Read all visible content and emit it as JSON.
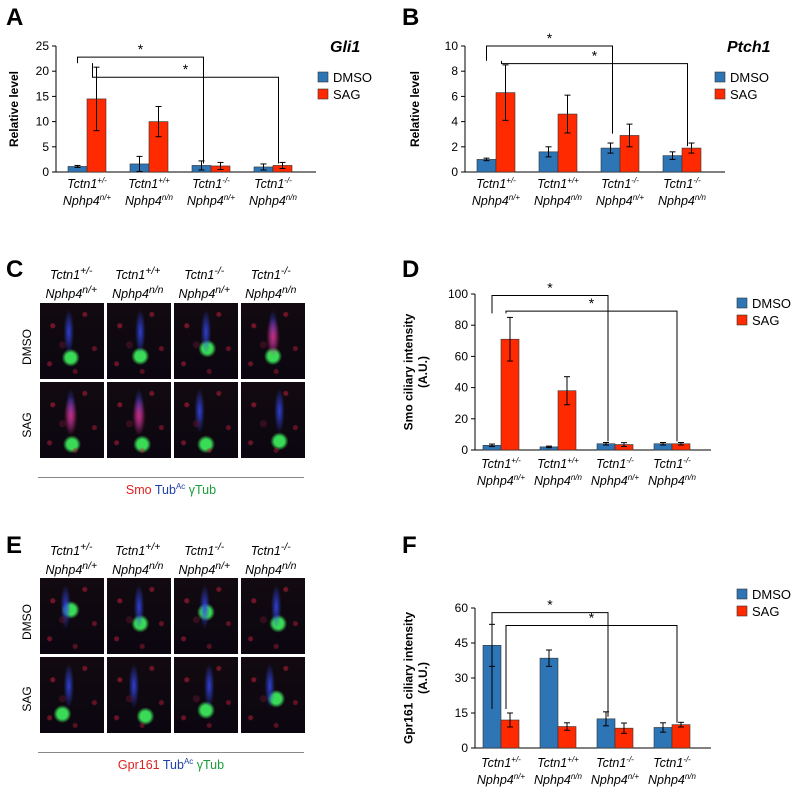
{
  "panels": {
    "A": "A",
    "B": "B",
    "C": "C",
    "D": "D",
    "E": "E",
    "F": "F"
  },
  "genotypes": [
    {
      "l1b": "Tctn1",
      "l1s": "+/-",
      "l2b": "Nphp4",
      "l2s": "n/+"
    },
    {
      "l1b": "Tctn1",
      "l1s": "+/+",
      "l2b": "Nphp4",
      "l2s": "n/n"
    },
    {
      "l1b": "Tctn1",
      "l1s": "-/-",
      "l2b": "Nphp4",
      "l2s": "n/+"
    },
    {
      "l1b": "Tctn1",
      "l1s": "-/-",
      "l2b": "Nphp4",
      "l2s": "n/n"
    }
  ],
  "legend": [
    "DMSO",
    "SAG"
  ],
  "colors": {
    "DMSO": "#2e75b6",
    "SAG": "#ff2a00",
    "micro_blue": "#2a3fd8",
    "micro_green": "#25d04a",
    "micro_red": "#e0205a"
  },
  "micro_C": {
    "row_labels": [
      "DMSO",
      "SAG"
    ],
    "stain_parts": [
      {
        "text": "Smo",
        "color": "#e02020"
      },
      {
        "text": "Tub",
        "sup": "Ac",
        "color": "#1f3fa8"
      },
      {
        "text": "γTub",
        "color": "#1a9e3a"
      }
    ]
  },
  "micro_E": {
    "row_labels": [
      "DMSO",
      "SAG"
    ],
    "stain_parts": [
      {
        "text": "Gpr161",
        "color": "#e02020"
      },
      {
        "text": "Tub",
        "sup": "Ac",
        "color": "#1f3fa8"
      },
      {
        "text": "γTub",
        "color": "#1a9e3a"
      }
    ]
  },
  "chart_data": [
    {
      "type": "bar",
      "panel": "A",
      "title": "Gli1",
      "ylabel": "Relative level",
      "ylim": [
        0,
        25
      ],
      "yticks": [
        0,
        5,
        10,
        15,
        20,
        25
      ],
      "categories": [
        "Tctn1+/- Nphp4n/+",
        "Tctn1+/+ Nphp4n/n",
        "Tctn1-/- Nphp4n/+",
        "Tctn1-/- Nphp4n/n"
      ],
      "series": [
        {
          "name": "DMSO",
          "values": [
            1.1,
            1.6,
            1.3,
            1.0
          ],
          "errors": [
            0.2,
            1.5,
            0.9,
            0.6
          ]
        },
        {
          "name": "SAG",
          "values": [
            14.5,
            10.0,
            1.2,
            1.3
          ],
          "errors": [
            6.3,
            3.0,
            0.7,
            0.6
          ]
        }
      ],
      "significance": [
        {
          "from": 0,
          "to": 2,
          "label": "*",
          "level": 22.8
        },
        {
          "from": 0,
          "to": 3,
          "label": "*",
          "level": 18.8
        }
      ],
      "legend_position": "right"
    },
    {
      "type": "bar",
      "panel": "B",
      "title": "Ptch1",
      "ylabel": "Relative level",
      "ylim": [
        0,
        10
      ],
      "yticks": [
        0,
        2,
        4,
        6,
        8,
        10
      ],
      "categories": [
        "Tctn1+/- Nphp4n/+",
        "Tctn1+/+ Nphp4n/n",
        "Tctn1-/- Nphp4n/+",
        "Tctn1-/- Nphp4n/n"
      ],
      "series": [
        {
          "name": "DMSO",
          "values": [
            1.0,
            1.6,
            1.9,
            1.3
          ],
          "errors": [
            0.1,
            0.4,
            0.4,
            0.3
          ]
        },
        {
          "name": "SAG",
          "values": [
            6.3,
            4.6,
            2.9,
            1.9
          ],
          "errors": [
            2.2,
            1.5,
            0.9,
            0.4
          ]
        }
      ],
      "significance": [
        {
          "from": 0,
          "to": 2,
          "label": "*",
          "level": 10.0
        },
        {
          "from": 0,
          "to": 3,
          "label": "*",
          "level": 8.6
        }
      ],
      "legend_position": "right"
    },
    {
      "type": "bar",
      "panel": "D",
      "ylabel": "Smo ciliary intensity (A.U.)",
      "ylim": [
        0,
        100
      ],
      "yticks": [
        0,
        20,
        40,
        60,
        80,
        100
      ],
      "categories": [
        "Tctn1+/- Nphp4n/+",
        "Tctn1+/+ Nphp4n/n",
        "Tctn1-/- Nphp4n/+",
        "Tctn1-/- Nphp4n/n"
      ],
      "series": [
        {
          "name": "DMSO",
          "values": [
            3,
            2,
            4,
            4
          ],
          "errors": [
            0.8,
            0.5,
            0.8,
            0.8
          ]
        },
        {
          "name": "SAG",
          "values": [
            71,
            38,
            3.5,
            4
          ],
          "errors": [
            14,
            9,
            1.2,
            0.8
          ]
        }
      ],
      "significance": [
        {
          "from": 0,
          "to": 2,
          "label": "*",
          "level": 99
        },
        {
          "from": 0,
          "to": 3,
          "label": "*",
          "level": 89
        }
      ],
      "legend_position": "top-right"
    },
    {
      "type": "bar",
      "panel": "F",
      "ylabel": "Gpr161 ciliary intensity (A.U.)",
      "ylim": [
        0,
        60
      ],
      "yticks": [
        0,
        15,
        30,
        45,
        60
      ],
      "categories": [
        "Tctn1+/- Nphp4n/+",
        "Tctn1+/+ Nphp4n/n",
        "Tctn1-/- Nphp4n/+",
        "Tctn1-/- Nphp4n/n"
      ],
      "series": [
        {
          "name": "DMSO",
          "values": [
            44,
            38.5,
            12.5,
            8.8
          ],
          "errors": [
            9,
            3.5,
            3,
            2
          ]
        },
        {
          "name": "SAG",
          "values": [
            12,
            9.2,
            8.5,
            10
          ],
          "errors": [
            3,
            1.6,
            2.2,
            1
          ]
        }
      ],
      "significance": [
        {
          "from": 0,
          "to": 2,
          "label": "*",
          "level": 58
        },
        {
          "from": 0,
          "to": 3,
          "label": "*",
          "level": 52.5
        }
      ],
      "legend_position": "top-right"
    }
  ]
}
